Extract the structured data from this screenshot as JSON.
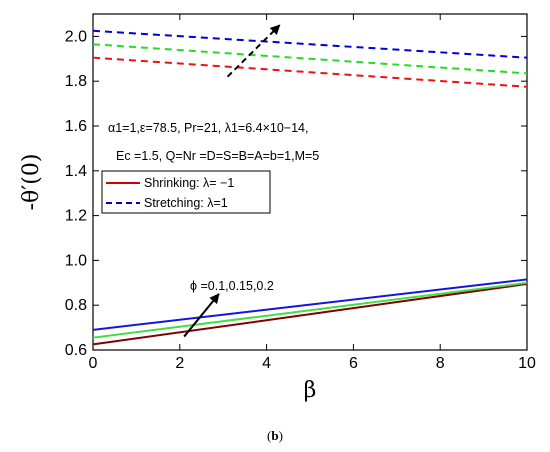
{
  "chart_data": {
    "type": "line",
    "xlabel": "β",
    "ylabel": "-θ′(0)",
    "xlim": [
      0,
      10
    ],
    "ylim": [
      0.6,
      2.1
    ],
    "x_ticks": [
      0,
      2,
      4,
      6,
      8,
      10
    ],
    "y_ticks": [
      0.6,
      0.8,
      1.0,
      1.2,
      1.4,
      1.6,
      1.8,
      2.0
    ],
    "x_tick_labels": [
      "0",
      "2",
      "4",
      "6",
      "8",
      "10"
    ],
    "y_tick_labels": [
      "0.6",
      "0.8",
      "1.0",
      "1.2",
      "1.4",
      "1.6",
      "1.8",
      "2.0"
    ],
    "grid": false,
    "legend": {
      "placement": "center-left",
      "entries": [
        {
          "label": "Shrinking: λ= −1",
          "style": "solid",
          "color": "#d00000"
        },
        {
          "label": "Stretching: λ=1",
          "style": "dashed",
          "color": "#0000cc"
        }
      ]
    },
    "series": [
      {
        "group": "stretching",
        "style": "dashed",
        "color": "#ee1111",
        "x": [
          0,
          10
        ],
        "y": [
          1.905,
          1.775
        ]
      },
      {
        "group": "stretching",
        "style": "dashed",
        "color": "#22dd22",
        "x": [
          0,
          10
        ],
        "y": [
          1.965,
          1.835
        ]
      },
      {
        "group": "stretching",
        "style": "dashed",
        "color": "#0000dd",
        "x": [
          0,
          10
        ],
        "y": [
          2.025,
          1.905
        ]
      },
      {
        "group": "shrinking",
        "style": "solid",
        "color": "#800000",
        "x": [
          0,
          10
        ],
        "y": [
          0.625,
          0.895
        ]
      },
      {
        "group": "shrinking",
        "style": "solid",
        "color": "#44dd44",
        "x": [
          0,
          10
        ],
        "y": [
          0.655,
          0.9
        ]
      },
      {
        "group": "shrinking",
        "style": "solid",
        "color": "#1515dd",
        "x": [
          0,
          10
        ],
        "y": [
          0.69,
          0.915
        ]
      }
    ],
    "annotations": {
      "params_line1": "α1=1,ε=78.5, Pr=21, λ1=6.4×10−14,",
      "params_line2": "Ec =1.5, Q=Nr =D=S=B=A=b=1,M=5",
      "phi_label": "ϕ =0.1,0.15,0.2",
      "arrows": [
        {
          "style": "dashed",
          "from": [
            3.1,
            1.82
          ],
          "to": [
            4.3,
            2.05
          ]
        },
        {
          "style": "solid",
          "from": [
            2.1,
            0.66
          ],
          "to": [
            2.9,
            0.85
          ]
        }
      ]
    },
    "panel_label": "(b)"
  }
}
